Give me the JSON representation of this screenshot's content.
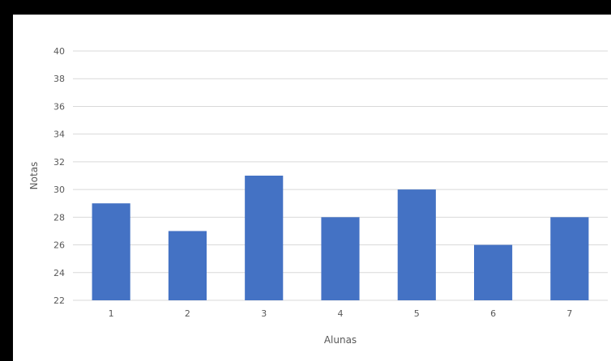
{
  "chart_data": {
    "type": "bar",
    "title": "",
    "xlabel": "Alunas",
    "ylabel": "Notas",
    "categories": [
      "1",
      "2",
      "3",
      "4",
      "5",
      "6",
      "7"
    ],
    "values": [
      29,
      27,
      31,
      28,
      30,
      26,
      28
    ],
    "ylim": [
      22,
      40
    ],
    "yticks": [
      22,
      24,
      26,
      28,
      30,
      32,
      34,
      36,
      38,
      40
    ],
    "grid": true,
    "legend": "none",
    "bar_color": "#4472C4",
    "grid_color": "#D9D9D9"
  }
}
